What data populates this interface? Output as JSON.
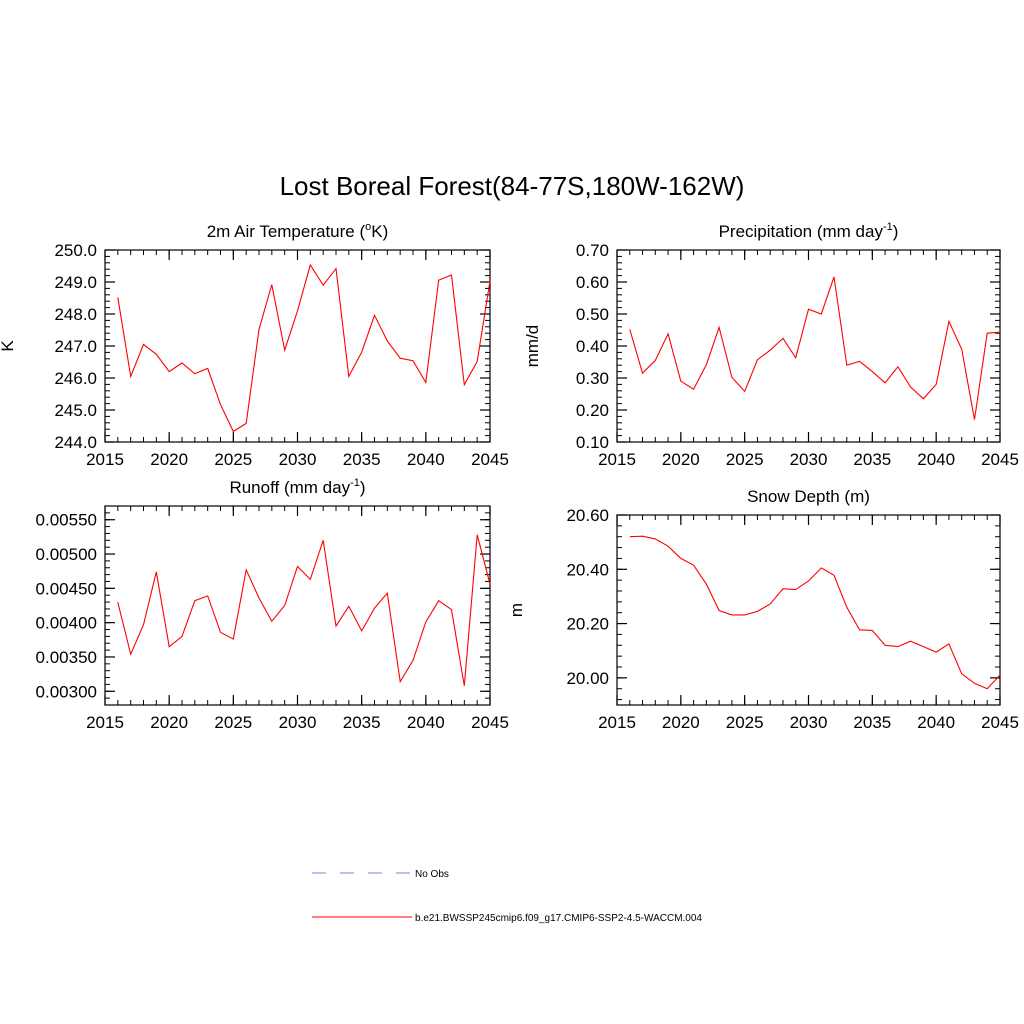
{
  "title": "Lost Boreal Forest(84-77S,180W-162W)",
  "colors": {
    "model": "#ff0000",
    "obs": "#9999dd",
    "axis": "#000000"
  },
  "chart_data": [
    {
      "type": "line",
      "title": "2m Air Temperature (",
      "title_sup": "o",
      "title_tail": "K)",
      "ylabel": "K",
      "xlim": [
        2015,
        2045
      ],
      "ylim": [
        244.0,
        250.0
      ],
      "xticks": [
        2015,
        2020,
        2025,
        2030,
        2035,
        2040,
        2045
      ],
      "yticks": [
        244.0,
        245.0,
        246.0,
        247.0,
        248.0,
        249.0,
        250.0
      ],
      "ytick_labels": [
        "244.0",
        "245.0",
        "246.0",
        "247.0",
        "248.0",
        "249.0",
        "250.0"
      ],
      "yminor": 0.2,
      "x": [
        2016,
        2017,
        2018,
        2019,
        2020,
        2021,
        2022,
        2023,
        2024,
        2025,
        2026,
        2027,
        2028,
        2029,
        2030,
        2031,
        2032,
        2033,
        2034,
        2035,
        2036,
        2037,
        2038,
        2039,
        2040,
        2041,
        2042,
        2043,
        2044,
        2045
      ],
      "values": [
        248.52,
        246.05,
        247.05,
        246.74,
        246.2,
        246.47,
        246.13,
        246.3,
        245.17,
        244.33,
        244.58,
        247.52,
        248.92,
        246.87,
        248.1,
        249.53,
        248.9,
        249.42,
        246.05,
        246.81,
        247.96,
        247.16,
        246.62,
        246.54,
        245.86,
        249.06,
        249.22,
        245.79,
        246.52,
        249.04
      ]
    },
    {
      "type": "line",
      "title": "Precipitation (mm day",
      "title_sup": "-1",
      "title_tail": ")",
      "ylabel": "mm/d",
      "xlim": [
        2015,
        2045
      ],
      "ylim": [
        0.1,
        0.7
      ],
      "xticks": [
        2015,
        2020,
        2025,
        2030,
        2035,
        2040,
        2045
      ],
      "yticks": [
        0.1,
        0.2,
        0.3,
        0.4,
        0.5,
        0.6,
        0.7
      ],
      "ytick_labels": [
        "0.10",
        "0.20",
        "0.30",
        "0.40",
        "0.50",
        "0.60",
        "0.70"
      ],
      "yminor": 0.02,
      "x": [
        2016,
        2017,
        2018,
        2019,
        2020,
        2021,
        2022,
        2023,
        2024,
        2025,
        2026,
        2027,
        2028,
        2029,
        2030,
        2031,
        2032,
        2033,
        2034,
        2035,
        2036,
        2037,
        2038,
        2039,
        2040,
        2041,
        2042,
        2043,
        2044,
        2045
      ],
      "values": [
        0.452,
        0.315,
        0.355,
        0.438,
        0.29,
        0.265,
        0.342,
        0.458,
        0.302,
        0.258,
        0.357,
        0.387,
        0.424,
        0.363,
        0.515,
        0.5,
        0.616,
        0.34,
        0.352,
        0.32,
        0.285,
        0.335,
        0.272,
        0.235,
        0.28,
        0.477,
        0.39,
        0.17,
        0.44,
        0.443
      ]
    },
    {
      "type": "line",
      "title": "Runoff (mm day",
      "title_sup": "-1",
      "title_tail": ")",
      "ylabel": "",
      "xlim": [
        2015,
        2045
      ],
      "ylim": [
        0.0028,
        0.0057
      ],
      "xticks": [
        2015,
        2020,
        2025,
        2030,
        2035,
        2040,
        2045
      ],
      "yticks": [
        0.003,
        0.0035,
        0.004,
        0.0045,
        0.005,
        0.0055
      ],
      "ytick_labels": [
        "0.00300",
        "0.00350",
        "0.00400",
        "0.00450",
        "0.00500",
        "0.00550"
      ],
      "yminor": 0.0001,
      "x": [
        2016,
        2017,
        2018,
        2019,
        2020,
        2021,
        2022,
        2023,
        2024,
        2025,
        2026,
        2027,
        2028,
        2029,
        2030,
        2031,
        2032,
        2033,
        2034,
        2035,
        2036,
        2037,
        2038,
        2039,
        2040,
        2041,
        2042,
        2043,
        2044,
        2045
      ],
      "values": [
        0.0043,
        0.00354,
        0.00397,
        0.00474,
        0.00365,
        0.0038,
        0.00432,
        0.00439,
        0.00386,
        0.00376,
        0.00477,
        0.00436,
        0.00402,
        0.00425,
        0.00482,
        0.00463,
        0.0052,
        0.00395,
        0.00424,
        0.00388,
        0.00421,
        0.00443,
        0.00314,
        0.00345,
        0.00401,
        0.00432,
        0.00419,
        0.00308,
        0.00528,
        0.00456
      ]
    },
    {
      "type": "line",
      "title": "Snow Depth (m)",
      "title_sup": "",
      "title_tail": "",
      "ylabel": "m",
      "xlim": [
        2015,
        2045
      ],
      "ylim": [
        19.9,
        20.6
      ],
      "xticks": [
        2015,
        2020,
        2025,
        2030,
        2035,
        2040,
        2045
      ],
      "yticks": [
        20.0,
        20.2,
        20.4,
        20.6
      ],
      "ytick_labels": [
        "20.00",
        "20.20",
        "20.40",
        "20.60"
      ],
      "yminor": 0.04,
      "x": [
        2016,
        2017,
        2018,
        2019,
        2020,
        2021,
        2022,
        2023,
        2024,
        2025,
        2026,
        2027,
        2028,
        2029,
        2030,
        2031,
        2032,
        2033,
        2034,
        2035,
        2036,
        2037,
        2038,
        2039,
        2040,
        2041,
        2042,
        2043,
        2044,
        2045
      ],
      "values": [
        20.52,
        20.522,
        20.512,
        20.485,
        20.44,
        20.415,
        20.345,
        20.248,
        20.232,
        20.232,
        20.245,
        20.272,
        20.328,
        20.325,
        20.357,
        20.405,
        20.378,
        20.26,
        20.177,
        20.175,
        20.12,
        20.115,
        20.135,
        20.115,
        20.095,
        20.125,
        20.015,
        19.98,
        19.96,
        20.01
      ]
    }
  ],
  "legend": [
    {
      "label": "No Obs",
      "style": "dashed"
    },
    {
      "label": "b.e21.BWSSP245cmip6.f09_g17.CMIP6-SSP2-4.5-WACCM.004",
      "style": "solid"
    }
  ]
}
